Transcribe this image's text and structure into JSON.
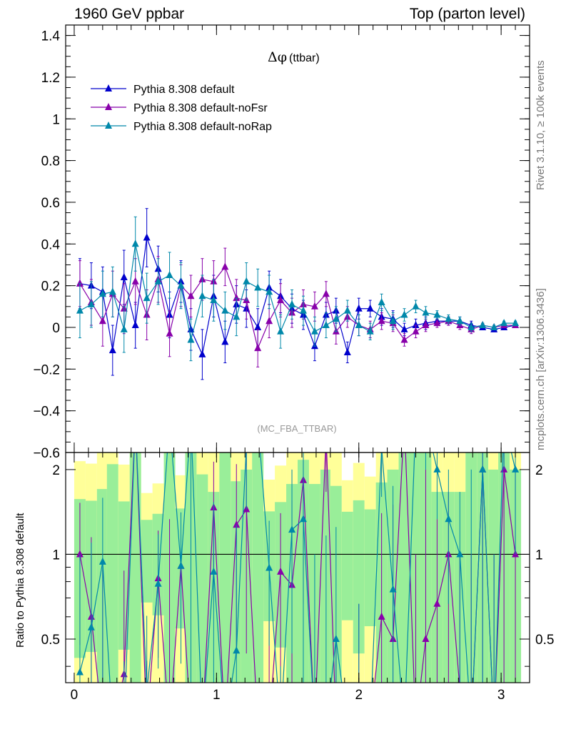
{
  "header": {
    "left": "1960 GeV ppbar",
    "right": "Top (parton level)"
  },
  "side_labels": {
    "rivet": "Rivet 3.1.10, ≥ 100k events",
    "mcplots": "mcplots.cern.ch [arXiv:1306.3436]"
  },
  "chart_data": {
    "type": "line",
    "title": "Δφ (ttbar)",
    "title_symbol": "Δφ",
    "title_suffix": "(ttbar)",
    "watermark": "(MC_FBA_TTBAR)",
    "ratio_ylabel": "Ratio to Pythia 8.308 default",
    "xlim": [
      -0.06,
      3.2
    ],
    "ylim": [
      -0.6,
      1.45
    ],
    "ratio_ylim": [
      0.35,
      2.3
    ],
    "x_ticks": [
      "0",
      "1",
      "2",
      "3"
    ],
    "y_ticks": [
      "−0.6",
      "−0.4",
      "−0.2",
      "0",
      "0.2",
      "0.4",
      "0.6",
      "0.8",
      "1",
      "1.2",
      "1.4"
    ],
    "ratio_ticks": [
      "0.5",
      "1",
      "2"
    ],
    "legend_position": "top-left",
    "x": [
      0.04,
      0.12,
      0.2,
      0.27,
      0.35,
      0.43,
      0.51,
      0.59,
      0.67,
      0.75,
      0.82,
      0.9,
      0.98,
      1.06,
      1.14,
      1.21,
      1.29,
      1.37,
      1.45,
      1.53,
      1.61,
      1.69,
      1.77,
      1.84,
      1.92,
      2.0,
      2.08,
      2.16,
      2.24,
      2.32,
      2.4,
      2.47,
      2.55,
      2.63,
      2.71,
      2.79,
      2.87,
      2.95,
      3.02,
      3.1
    ],
    "series": [
      {
        "name": "Pythia 8.308 default",
        "color": "#0000cc",
        "values": [
          0.21,
          0.2,
          0.17,
          -0.11,
          0.24,
          0.01,
          0.43,
          0.28,
          0.06,
          0.22,
          -0.01,
          -0.13,
          0.15,
          -0.07,
          0.11,
          0.09,
          0.0,
          0.19,
          0.15,
          0.09,
          0.06,
          -0.09,
          0.06,
          0.08,
          -0.12,
          0.09,
          0.09,
          0.05,
          0.04,
          -0.01,
          0.01,
          0.02,
          0.03,
          0.03,
          0.03,
          0.01,
          0.0,
          -0.01,
          0.0,
          0.01
        ],
        "errors": [
          0.12,
          0.11,
          0.12,
          0.12,
          0.13,
          0.11,
          0.14,
          0.11,
          0.11,
          0.1,
          0.1,
          0.12,
          0.1,
          0.1,
          0.09,
          0.09,
          0.09,
          0.08,
          0.08,
          0.07,
          0.07,
          0.07,
          0.06,
          0.06,
          0.05,
          0.05,
          0.04,
          0.04,
          0.04,
          0.03,
          0.03,
          0.03,
          0.02,
          0.02,
          0.02,
          0.02,
          0.01,
          0.01,
          0.01,
          0.01
        ]
      },
      {
        "name": "Pythia 8.308 default-noFsr",
        "color": "#8800aa",
        "values": [
          0.21,
          0.12,
          0.03,
          0.16,
          0.09,
          0.22,
          0.06,
          0.23,
          -0.03,
          0.2,
          0.15,
          0.23,
          0.22,
          0.29,
          0.14,
          0.13,
          -0.1,
          0.03,
          0.13,
          0.07,
          0.11,
          0.1,
          0.16,
          -0.02,
          0.05,
          0.01,
          -0.01,
          0.03,
          0.02,
          -0.06,
          -0.02,
          0.01,
          0.02,
          0.03,
          0.01,
          -0.01,
          0.01,
          0.0,
          0.01,
          0.01
        ],
        "errors": [
          0.11,
          0.11,
          0.12,
          0.11,
          0.12,
          0.11,
          0.12,
          0.11,
          0.11,
          0.1,
          0.1,
          0.1,
          0.1,
          0.09,
          0.09,
          0.09,
          0.09,
          0.08,
          0.08,
          0.07,
          0.07,
          0.07,
          0.06,
          0.06,
          0.05,
          0.05,
          0.04,
          0.04,
          0.04,
          0.03,
          0.03,
          0.03,
          0.02,
          0.02,
          0.02,
          0.02,
          0.01,
          0.01,
          0.01,
          0.01
        ]
      },
      {
        "name": "Pythia 8.308 default-noRap",
        "color": "#0088aa",
        "values": [
          0.08,
          0.11,
          0.16,
          0.17,
          -0.01,
          0.4,
          0.14,
          0.22,
          0.25,
          0.2,
          -0.06,
          0.15,
          0.13,
          0.08,
          0.05,
          0.22,
          0.19,
          0.17,
          -0.02,
          0.11,
          0.08,
          -0.02,
          0.01,
          0.04,
          0.08,
          0.01,
          -0.02,
          0.12,
          0.03,
          0.06,
          0.1,
          0.07,
          0.06,
          0.04,
          0.03,
          0.0,
          0.01,
          0.0,
          0.02,
          0.02
        ],
        "errors": [
          0.13,
          0.11,
          0.11,
          0.12,
          0.11,
          0.13,
          0.12,
          0.11,
          0.11,
          0.11,
          0.1,
          0.1,
          0.1,
          0.09,
          0.09,
          0.09,
          0.09,
          0.08,
          0.08,
          0.07,
          0.07,
          0.07,
          0.06,
          0.06,
          0.05,
          0.05,
          0.04,
          0.04,
          0.04,
          0.03,
          0.03,
          0.03,
          0.02,
          0.02,
          0.02,
          0.02,
          0.01,
          0.01,
          0.01,
          0.01
        ]
      }
    ],
    "ratio_band_colors": {
      "inner": "#99ee99",
      "outer": "#ffff99"
    }
  }
}
